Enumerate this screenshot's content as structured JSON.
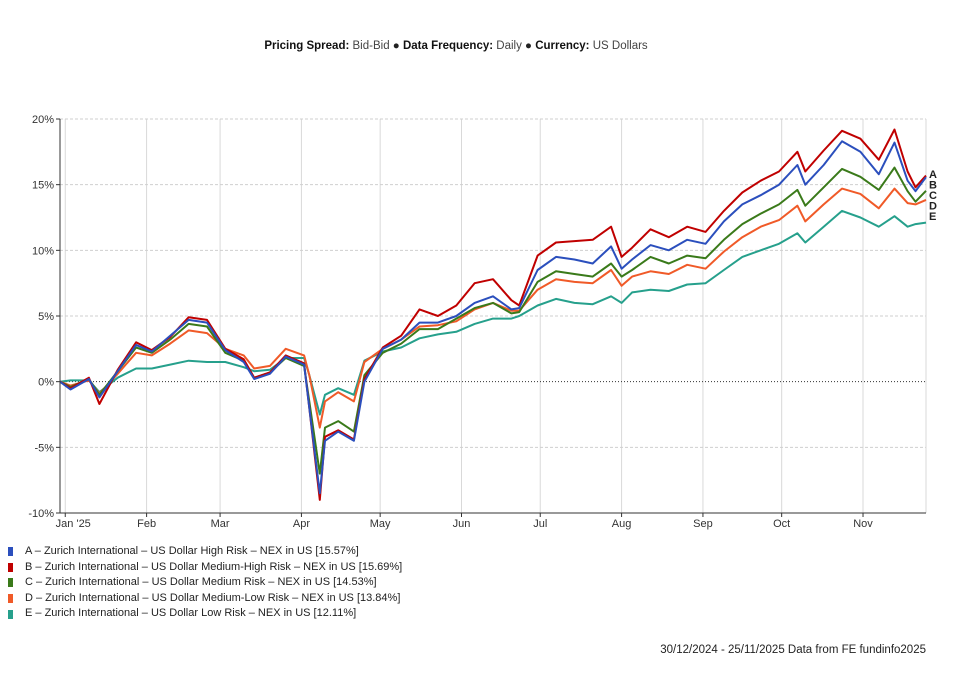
{
  "header": {
    "items": [
      {
        "label": "Pricing Spread:",
        "value": "Bid-Bid"
      },
      {
        "label": "Data Frequency:",
        "value": "Daily"
      },
      {
        "label": "Currency:",
        "value": "US Dollars"
      }
    ],
    "separator": "●"
  },
  "footer": "30/12/2024 - 25/11/2025 Data from FE fundinfo2025",
  "chart_data": {
    "type": "line",
    "title": "",
    "xlabel": "",
    "ylabel": "",
    "x_range": [
      "2024-12-30",
      "2025-11-25"
    ],
    "ylim": [
      -10,
      20
    ],
    "y_ticks": [
      -10,
      -5,
      0,
      5,
      10,
      15,
      20
    ],
    "y_tick_labels": [
      "-10%",
      "-5%",
      "0%",
      "5%",
      "10%",
      "15%",
      "20%"
    ],
    "x_ticks": [
      "2025-01-01",
      "2025-02-01",
      "2025-03-01",
      "2025-04-01",
      "2025-05-01",
      "2025-06-01",
      "2025-07-01",
      "2025-08-01",
      "2025-09-01",
      "2025-10-01",
      "2025-11-01"
    ],
    "x_tick_labels": [
      "Jan '25",
      "Feb",
      "Mar",
      "Apr",
      "May",
      "Jun",
      "Jul",
      "Aug",
      "Sep",
      "Oct",
      "Nov"
    ],
    "grid": true,
    "legend_placement": "bottom-left",
    "x": [
      "2024-12-30",
      "2025-01-03",
      "2025-01-10",
      "2025-01-14",
      "2025-01-21",
      "2025-01-28",
      "2025-02-03",
      "2025-02-10",
      "2025-02-17",
      "2025-02-24",
      "2025-03-03",
      "2025-03-10",
      "2025-03-14",
      "2025-03-20",
      "2025-03-26",
      "2025-04-02",
      "2025-04-04",
      "2025-04-08",
      "2025-04-10",
      "2025-04-15",
      "2025-04-21",
      "2025-04-25",
      "2025-05-02",
      "2025-05-09",
      "2025-05-16",
      "2025-05-23",
      "2025-05-30",
      "2025-06-06",
      "2025-06-13",
      "2025-06-20",
      "2025-06-23",
      "2025-06-30",
      "2025-07-07",
      "2025-07-14",
      "2025-07-21",
      "2025-07-28",
      "2025-08-01",
      "2025-08-05",
      "2025-08-12",
      "2025-08-19",
      "2025-08-26",
      "2025-09-02",
      "2025-09-09",
      "2025-09-16",
      "2025-09-23",
      "2025-09-30",
      "2025-10-07",
      "2025-10-10",
      "2025-10-17",
      "2025-10-24",
      "2025-10-31",
      "2025-11-07",
      "2025-11-13",
      "2025-11-18",
      "2025-11-21",
      "2025-11-25"
    ],
    "series": [
      {
        "name": "A – Zurich International – US Dollar High Risk – NEX in US [15.57%]",
        "tag": "A",
        "color": "#2b4fbd",
        "values": [
          0,
          -0.6,
          0.2,
          -1.2,
          0.8,
          2.8,
          2.3,
          3.5,
          4.7,
          4.5,
          2.4,
          1.5,
          0.2,
          0.6,
          1.9,
          1.3,
          -2,
          -8.5,
          -4.5,
          -3.8,
          -4.5,
          0,
          2.5,
          3.2,
          4.5,
          4.5,
          5.0,
          6.0,
          6.5,
          5.5,
          5.6,
          8.5,
          9.5,
          9.3,
          9.0,
          10.3,
          8.6,
          9.3,
          10.4,
          10.0,
          10.8,
          10.5,
          12.2,
          13.5,
          14.2,
          15.0,
          16.5,
          15.0,
          16.5,
          18.3,
          17.5,
          15.8,
          18.2,
          15.3,
          14.5,
          15.57
        ]
      },
      {
        "name": "B – Zurich International – US Dollar Medium-High Risk – NEX in US [15.69%]",
        "tag": "B",
        "color": "#c00000",
        "values": [
          0,
          -0.5,
          0.3,
          -1.7,
          0.9,
          3.0,
          2.4,
          3.4,
          4.9,
          4.7,
          2.5,
          1.7,
          0.3,
          0.7,
          2.0,
          1.4,
          -2,
          -9.0,
          -4.2,
          -3.7,
          -4.4,
          0.2,
          2.6,
          3.5,
          5.5,
          5.0,
          5.8,
          7.5,
          7.8,
          6.2,
          5.8,
          9.6,
          10.6,
          10.7,
          10.8,
          11.8,
          9.5,
          10.2,
          11.6,
          11.0,
          11.8,
          11.4,
          13.0,
          14.4,
          15.3,
          16.0,
          17.5,
          16.0,
          17.6,
          19.1,
          18.5,
          16.9,
          19.2,
          16.0,
          14.8,
          15.69
        ]
      },
      {
        "name": "C – Zurich International – US Dollar Medium Risk – NEX in US [14.53%]",
        "tag": "C",
        "color": "#3a7a1a",
        "values": [
          0,
          -0.4,
          0.2,
          -1.0,
          0.8,
          2.6,
          2.2,
          3.2,
          4.4,
          4.2,
          2.2,
          1.6,
          0.3,
          0.7,
          1.8,
          1.2,
          -1.5,
          -7.0,
          -3.5,
          -3.0,
          -3.8,
          0.5,
          2.2,
          2.9,
          4.0,
          4.0,
          4.8,
          5.6,
          6.0,
          5.2,
          5.3,
          7.6,
          8.4,
          8.2,
          8.0,
          9.0,
          8.0,
          8.5,
          9.5,
          9.0,
          9.6,
          9.4,
          10.8,
          12.0,
          12.8,
          13.5,
          14.6,
          13.4,
          14.8,
          16.2,
          15.6,
          14.6,
          16.3,
          14.5,
          13.7,
          14.53
        ]
      },
      {
        "name": "D – Zurich International – US Dollar Medium-Low Risk – NEX in US [13.84%]",
        "tag": "D",
        "color": "#f05a28",
        "values": [
          0,
          -0.3,
          0.1,
          -0.9,
          0.6,
          2.2,
          2.0,
          2.9,
          3.9,
          3.7,
          2.5,
          2.0,
          1.0,
          1.2,
          2.5,
          2.0,
          0.5,
          -3.5,
          -1.5,
          -0.8,
          -1.5,
          1.5,
          2.5,
          3.2,
          4.2,
          4.3,
          4.6,
          5.5,
          6.0,
          5.4,
          5.4,
          7.0,
          7.8,
          7.6,
          7.5,
          8.5,
          7.3,
          8.0,
          8.4,
          8.2,
          8.9,
          8.6,
          9.9,
          11.0,
          11.8,
          12.3,
          13.4,
          12.2,
          13.5,
          14.7,
          14.3,
          13.2,
          14.7,
          13.6,
          13.5,
          13.84
        ]
      },
      {
        "name": "E – Zurich International – US Dollar Low Risk – NEX in US [12.11%]",
        "tag": "E",
        "color": "#26a08c",
        "values": [
          0,
          0.1,
          0.1,
          -0.8,
          0.3,
          1.0,
          1.0,
          1.3,
          1.6,
          1.5,
          1.5,
          1.1,
          0.8,
          0.9,
          1.8,
          1.8,
          0.5,
          -2.5,
          -1.0,
          -0.5,
          -1.0,
          1.6,
          2.3,
          2.6,
          3.3,
          3.6,
          3.8,
          4.4,
          4.8,
          4.8,
          5.0,
          5.8,
          6.3,
          6.0,
          5.9,
          6.5,
          6.0,
          6.8,
          7.0,
          6.9,
          7.4,
          7.5,
          8.5,
          9.5,
          10.0,
          10.5,
          11.3,
          10.6,
          11.8,
          13.0,
          12.5,
          11.8,
          12.6,
          11.8,
          12.0,
          12.11
        ]
      }
    ]
  }
}
